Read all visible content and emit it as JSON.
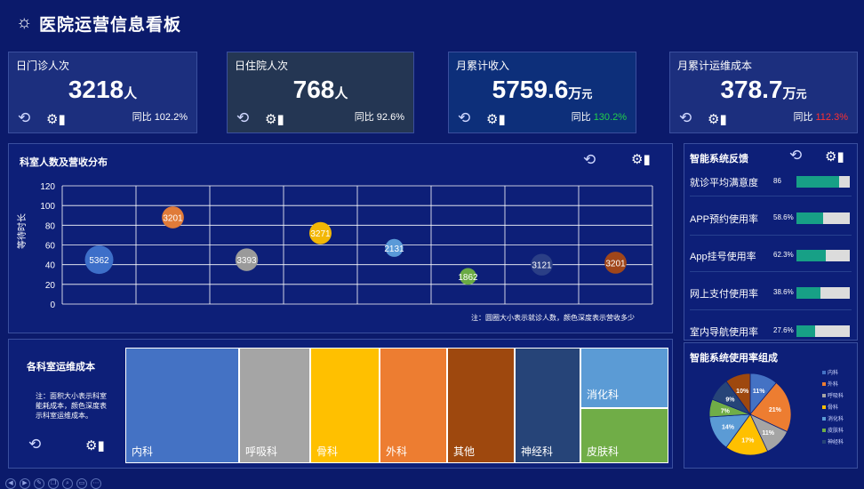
{
  "header": {
    "title": "医院运营信息看板",
    "icon": "sun-icon"
  },
  "kpis": [
    {
      "label": "日门诊人次",
      "value": "3218",
      "unit": "人",
      "yoy_label": "同比",
      "yoy": "102.2%",
      "yoy_color": "#ffffff",
      "bg": "#1c2f7e"
    },
    {
      "label": "日住院人次",
      "value": "768",
      "unit": "人",
      "yoy_label": "同比",
      "yoy": "92.6%",
      "yoy_color": "#ffffff",
      "bg": "#243653"
    },
    {
      "label": "月累计收入",
      "value": "5759.6",
      "unit": "万",
      "unit2": "元",
      "yoy_label": "同比",
      "yoy": "130.2%",
      "yoy_color": "#22d04a",
      "bg": "#0d2f7a"
    },
    {
      "label": "月累计运维成本",
      "value": "378.7",
      "unit": "万",
      "unit2": "元",
      "yoy_label": "同比",
      "yoy": "112.3%",
      "yoy_color": "#ff3030",
      "bg": "#1c2f7e"
    }
  ],
  "bubble": {
    "title": "科室人数及营收分布",
    "note": "注：圆圈大小表示就诊人数，颜色深度表示营收多少",
    "chart_data": {
      "type": "scatter",
      "ylabel": "等待时长",
      "ylim": [
        0,
        120
      ],
      "yticks": [
        "0",
        "20",
        "40",
        "60",
        "80",
        "100",
        "120"
      ],
      "points": [
        {
          "x": 1,
          "y": 45,
          "label": "5362",
          "size": 5362,
          "color": "#3d6fc9"
        },
        {
          "x": 2,
          "y": 88,
          "label": "3201",
          "size": 3201,
          "color": "#e07b39"
        },
        {
          "x": 3,
          "y": 45,
          "label": "3393",
          "size": 3393,
          "color": "#9a9a9a"
        },
        {
          "x": 4,
          "y": 72,
          "label": "3271",
          "size": 3271,
          "color": "#f2b705"
        },
        {
          "x": 5,
          "y": 57,
          "label": "2131",
          "size": 2131,
          "color": "#5a9ad8"
        },
        {
          "x": 6,
          "y": 28,
          "label": "1862",
          "size": 1862,
          "color": "#6aaa44"
        },
        {
          "x": 7,
          "y": 40,
          "label": "3121",
          "size": 3121,
          "color": "#2b3f86"
        },
        {
          "x": 8,
          "y": 42,
          "label": "3201",
          "size": 3201,
          "color": "#a0461a"
        }
      ]
    }
  },
  "satisfaction": {
    "title": "智能系统反馈",
    "items": [
      {
        "label": "就诊平均满意度",
        "value": "86",
        "pct": 0.8
      },
      {
        "label": "APP预约使用率",
        "value": "58.6%",
        "pct": 0.5
      },
      {
        "label": "App挂号使用率",
        "value": "62.3%",
        "pct": 0.55
      },
      {
        "label": "网上支付使用率",
        "value": "38.6%",
        "pct": 0.45
      },
      {
        "label": "室内导航使用率",
        "value": "27.6%",
        "pct": 0.35
      }
    ]
  },
  "treemap": {
    "title": "各科室运维成本",
    "note": "注：面积大小表示科室能耗成本，颜色深度表示科室运维成本。",
    "cells": [
      {
        "name": "内科",
        "color": "#4472c4"
      },
      {
        "name": "呼吸科",
        "color": "#a5a5a5"
      },
      {
        "name": "骨科",
        "color": "#ffc000"
      },
      {
        "name": "外科",
        "color": "#ed7d31"
      },
      {
        "name": "其他",
        "color": "#9e480e"
      },
      {
        "name": "神经科",
        "color": "#264478"
      },
      {
        "name": "消化科",
        "color": "#5b9bd5"
      },
      {
        "name": "皮肤科",
        "color": "#70ad47"
      }
    ]
  },
  "pie": {
    "title": "智能系统使用率组成",
    "chart_data": {
      "type": "pie",
      "slices": [
        {
          "name": "内科",
          "value": 11,
          "label": "11%",
          "color": "#4472c4"
        },
        {
          "name": "外科",
          "value": 21,
          "label": "21%",
          "color": "#ed7d31"
        },
        {
          "name": "呼吸科",
          "value": 11,
          "label": "11%",
          "color": "#a5a5a5"
        },
        {
          "name": "骨科",
          "value": 17,
          "label": "17%",
          "color": "#ffc000"
        },
        {
          "name": "消化科",
          "value": 14,
          "label": "14%",
          "color": "#5b9bd5"
        },
        {
          "name": "皮肤科",
          "value": 7,
          "label": "7%",
          "color": "#70ad47"
        },
        {
          "name": "神经科",
          "value": 9,
          "label": "9%",
          "color": "#264478"
        },
        {
          "name": "",
          "value": 10,
          "label": "10%",
          "color": "#9e480e"
        }
      ],
      "legend": [
        "内科",
        "外科",
        "呼吸科",
        "骨科",
        "消化科",
        "皮肤科",
        "神经科"
      ],
      "legend_position": "right"
    }
  },
  "icons": {
    "refresh": "refresh-icon",
    "settings": "settings-chart-icon"
  }
}
